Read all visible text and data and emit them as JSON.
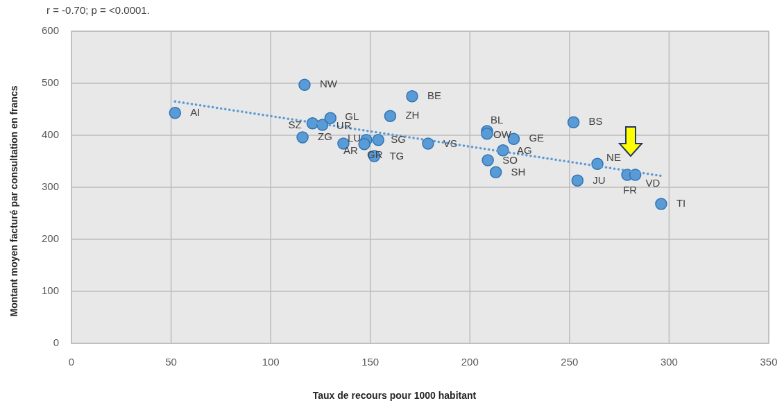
{
  "chart_data": {
    "type": "scatter",
    "title": "r = -0.70; p = <0.0001.",
    "xlabel": "Taux de recours  pour 1000 habitant",
    "ylabel": "Montant moyen facturé par consultation en francs",
    "xlim": [
      0,
      350
    ],
    "xticks": [
      0,
      50,
      100,
      150,
      200,
      250,
      300,
      350
    ],
    "ylim": [
      0,
      600
    ],
    "yticks": [
      0,
      100,
      200,
      300,
      400,
      500,
      600
    ],
    "grid": true,
    "series": [
      {
        "color": "#5b9bd5",
        "marker": "circle",
        "x": [
          52,
          117,
          121,
          116,
          126,
          130,
          136.5,
          148,
          147,
          154,
          152,
          160,
          171,
          179,
          208.6,
          208.6,
          222,
          216.6,
          209,
          213,
          252,
          264,
          254,
          279,
          283,
          296
        ],
        "values": [
          443,
          497,
          423,
          396,
          420,
          433,
          384,
          391,
          383,
          391,
          360,
          437,
          475,
          384,
          408,
          403,
          393,
          371,
          352,
          329,
          425,
          345,
          313,
          324,
          324,
          268
        ]
      },
      {
        "type": "line",
        "color": "#5b9bd5",
        "line_style": "dotted",
        "marker": "none",
        "x": [
          52,
          296
        ],
        "values": [
          465,
          322
        ]
      }
    ],
    "annotations": [
      {
        "text": "AI",
        "x": 52,
        "y": 443
      },
      {
        "text": "NW",
        "x": 117,
        "y": 497
      },
      {
        "text": "SZ",
        "x": 121,
        "y": 423
      },
      {
        "text": "ZG",
        "x": 116,
        "y": 396
      },
      {
        "text": "UR",
        "x": 126,
        "y": 420
      },
      {
        "text": "GL",
        "x": 130,
        "y": 433
      },
      {
        "text": "AR",
        "x": 136.5,
        "y": 384
      },
      {
        "text": "LU",
        "x": 148,
        "y": 391
      },
      {
        "text": "GR",
        "x": 147,
        "y": 383
      },
      {
        "text": "SG",
        "x": 154,
        "y": 391
      },
      {
        "text": "TG",
        "x": 152,
        "y": 360
      },
      {
        "text": "ZH",
        "x": 160,
        "y": 437
      },
      {
        "text": "BE",
        "x": 171,
        "y": 475
      },
      {
        "text": "VS",
        "x": 179,
        "y": 384
      },
      {
        "text": "BL",
        "x": 208.6,
        "y": 408
      },
      {
        "text": "OW",
        "x": 208.6,
        "y": 403
      },
      {
        "text": "GE",
        "x": 222,
        "y": 393
      },
      {
        "text": "AG",
        "x": 216.6,
        "y": 371
      },
      {
        "text": "SO",
        "x": 209,
        "y": 352
      },
      {
        "text": "SH",
        "x": 213,
        "y": 329
      },
      {
        "text": "BS",
        "x": 252,
        "y": 425
      },
      {
        "text": "NE",
        "x": 264,
        "y": 345
      },
      {
        "text": "JU",
        "x": 254,
        "y": 313
      },
      {
        "text": "FR",
        "x": 279,
        "y": 324
      },
      {
        "text": "VD",
        "x": 283,
        "y": 324
      },
      {
        "text": "TI",
        "x": 296,
        "y": 268
      }
    ]
  }
}
